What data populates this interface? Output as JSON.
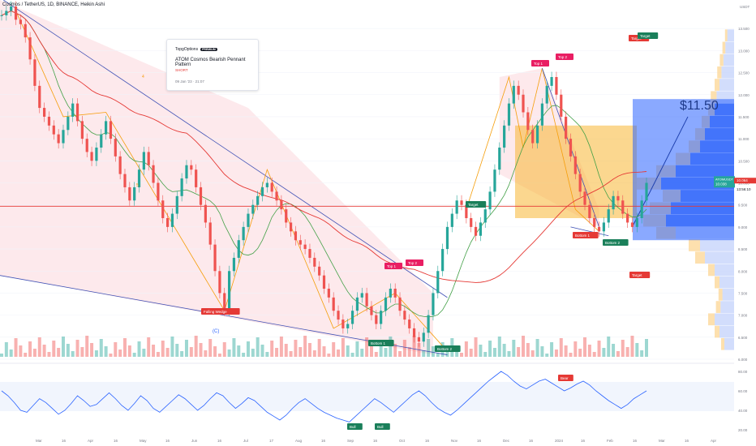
{
  "header": {
    "title": "Cosmos / TetherUS, 1D, BINANCE, Heikin Ashi"
  },
  "idea_card": {
    "brand": "TopgOptions",
    "badge": "PREMIUM",
    "title": "ATOM Cosmos Bearish Pennant Pattern",
    "direction": "SHORT",
    "date": "09 Jan '23 · 21:07"
  },
  "colors": {
    "up": "#26a69a",
    "down": "#ef5350",
    "ma_red": "#e53935",
    "ma_green": "#43a047",
    "wedge": "#3f51b5",
    "zigzag": "#f59e0b",
    "rsi": "#2962ff",
    "target_label": "#1a7f5a",
    "top_label": "#e91e63"
  },
  "chart_data": {
    "type": "candlestick",
    "symbol": "ATOMUSDT",
    "currency_label": "USDT",
    "price_axis": {
      "min": 6.0,
      "max": 14.0,
      "ticks": [
        "6.000",
        "6.500",
        "7.000",
        "7.500",
        "8.000",
        "8.500",
        "9.000",
        "9.500",
        "10.000",
        "10.500",
        "11.000",
        "11.500",
        "12.000",
        "12.500",
        "13.000",
        "13.500"
      ],
      "last_price": "10.038",
      "last_high": "10.064",
      "countdown": "13:56:10"
    },
    "time_axis": [
      "Mar",
      "16",
      "Apr",
      "16",
      "May",
      "16",
      "Jun",
      "16",
      "Jul",
      "17",
      "Aug",
      "16",
      "Sep",
      "16",
      "Oct",
      "16",
      "Nov",
      "16",
      "Dec",
      "16",
      "2024",
      "16",
      "Feb",
      "16",
      "Mar",
      "16",
      "Apr"
    ],
    "candles_close": [
      13.8,
      13.9,
      14.0,
      13.7,
      13.6,
      13.3,
      12.8,
      12.2,
      11.7,
      11.5,
      11.3,
      11.1,
      10.9,
      11.2,
      11.5,
      11.8,
      11.4,
      11.0,
      10.7,
      10.5,
      10.8,
      11.1,
      11.4,
      11.0,
      10.6,
      10.2,
      9.9,
      9.6,
      9.9,
      10.3,
      10.7,
      10.4,
      10.0,
      9.6,
      9.2,
      9.0,
      9.3,
      9.7,
      10.1,
      10.4,
      10.3,
      9.9,
      9.5,
      9.1,
      8.6,
      8.0,
      7.5,
      7.1,
      8.0,
      8.3,
      8.7,
      9.0,
      9.3,
      9.5,
      9.7,
      9.9,
      10.0,
      9.8,
      9.6,
      9.4,
      9.1,
      8.9,
      8.7,
      8.6,
      8.5,
      8.3,
      8.1,
      7.9,
      7.6,
      7.4,
      7.1,
      6.9,
      6.7,
      6.8,
      7.1,
      7.4,
      7.5,
      7.2,
      7.0,
      6.8,
      7.1,
      7.4,
      7.6,
      7.4,
      7.1,
      6.9,
      6.7,
      6.5,
      6.4,
      6.6,
      7.0,
      7.5,
      8.0,
      8.5,
      9.0,
      9.3,
      9.6,
      9.5,
      9.2,
      9.0,
      8.8,
      9.1,
      9.4,
      9.8,
      10.3,
      10.8,
      11.3,
      11.8,
      12.2,
      12.0,
      11.6,
      11.2,
      10.9,
      11.3,
      11.8,
      12.2,
      12.4,
      12.0,
      11.5,
      11.0,
      10.6,
      10.2,
      9.8,
      9.5,
      9.2,
      9.0,
      8.9,
      9.1,
      9.4,
      9.7,
      9.6,
      9.3,
      9.1,
      9.0,
      9.2,
      9.6,
      10.0
    ],
    "pattern_labels": {
      "falling_wedge": "Falling Wedge",
      "wave_c": "(C)",
      "wave_4": "4",
      "wave_5": "5",
      "top1_a": "Top 1",
      "top2_a": "Top 2",
      "bottom1_a": "Bottom 1",
      "bottom2_a": "Bottom 2",
      "target_a": "Target",
      "target_tag_a": "Target",
      "top1_b": "Top 1",
      "top2_b": "Top 2",
      "bottom1_b": "Bottom 1",
      "bottom2_b": "Bottom 2",
      "target_b_up": "Target",
      "target_b_up2": "Target",
      "target_b_down": "Target",
      "projection": "$11.50"
    },
    "rsi": {
      "ticks": [
        "20.00",
        "40.00",
        "60.00",
        "80.00"
      ],
      "values": [
        60,
        55,
        48,
        40,
        38,
        45,
        52,
        48,
        42,
        36,
        40,
        47,
        55,
        50,
        44,
        46,
        52,
        58,
        52,
        45,
        40,
        47,
        55,
        50,
        42,
        38,
        44,
        50,
        56,
        52,
        46,
        40,
        45,
        52,
        58,
        55,
        48,
        42,
        47,
        53,
        50,
        44,
        38,
        34,
        30,
        35,
        42,
        48,
        52,
        47,
        42,
        38,
        35,
        32,
        30,
        28,
        34,
        40,
        46,
        52,
        48,
        43,
        38,
        44,
        50,
        56,
        60,
        55,
        48,
        42,
        38,
        35,
        40,
        46,
        52,
        58,
        64,
        70,
        75,
        80,
        76,
        70,
        65,
        62,
        66,
        70,
        72,
        68,
        64,
        60,
        63,
        67,
        70,
        66,
        60,
        55,
        50,
        46,
        42,
        46,
        52,
        56,
        60
      ],
      "labels": {
        "bull_a": "Bull",
        "bull_b": "Bull",
        "bear": "Bear"
      }
    }
  }
}
